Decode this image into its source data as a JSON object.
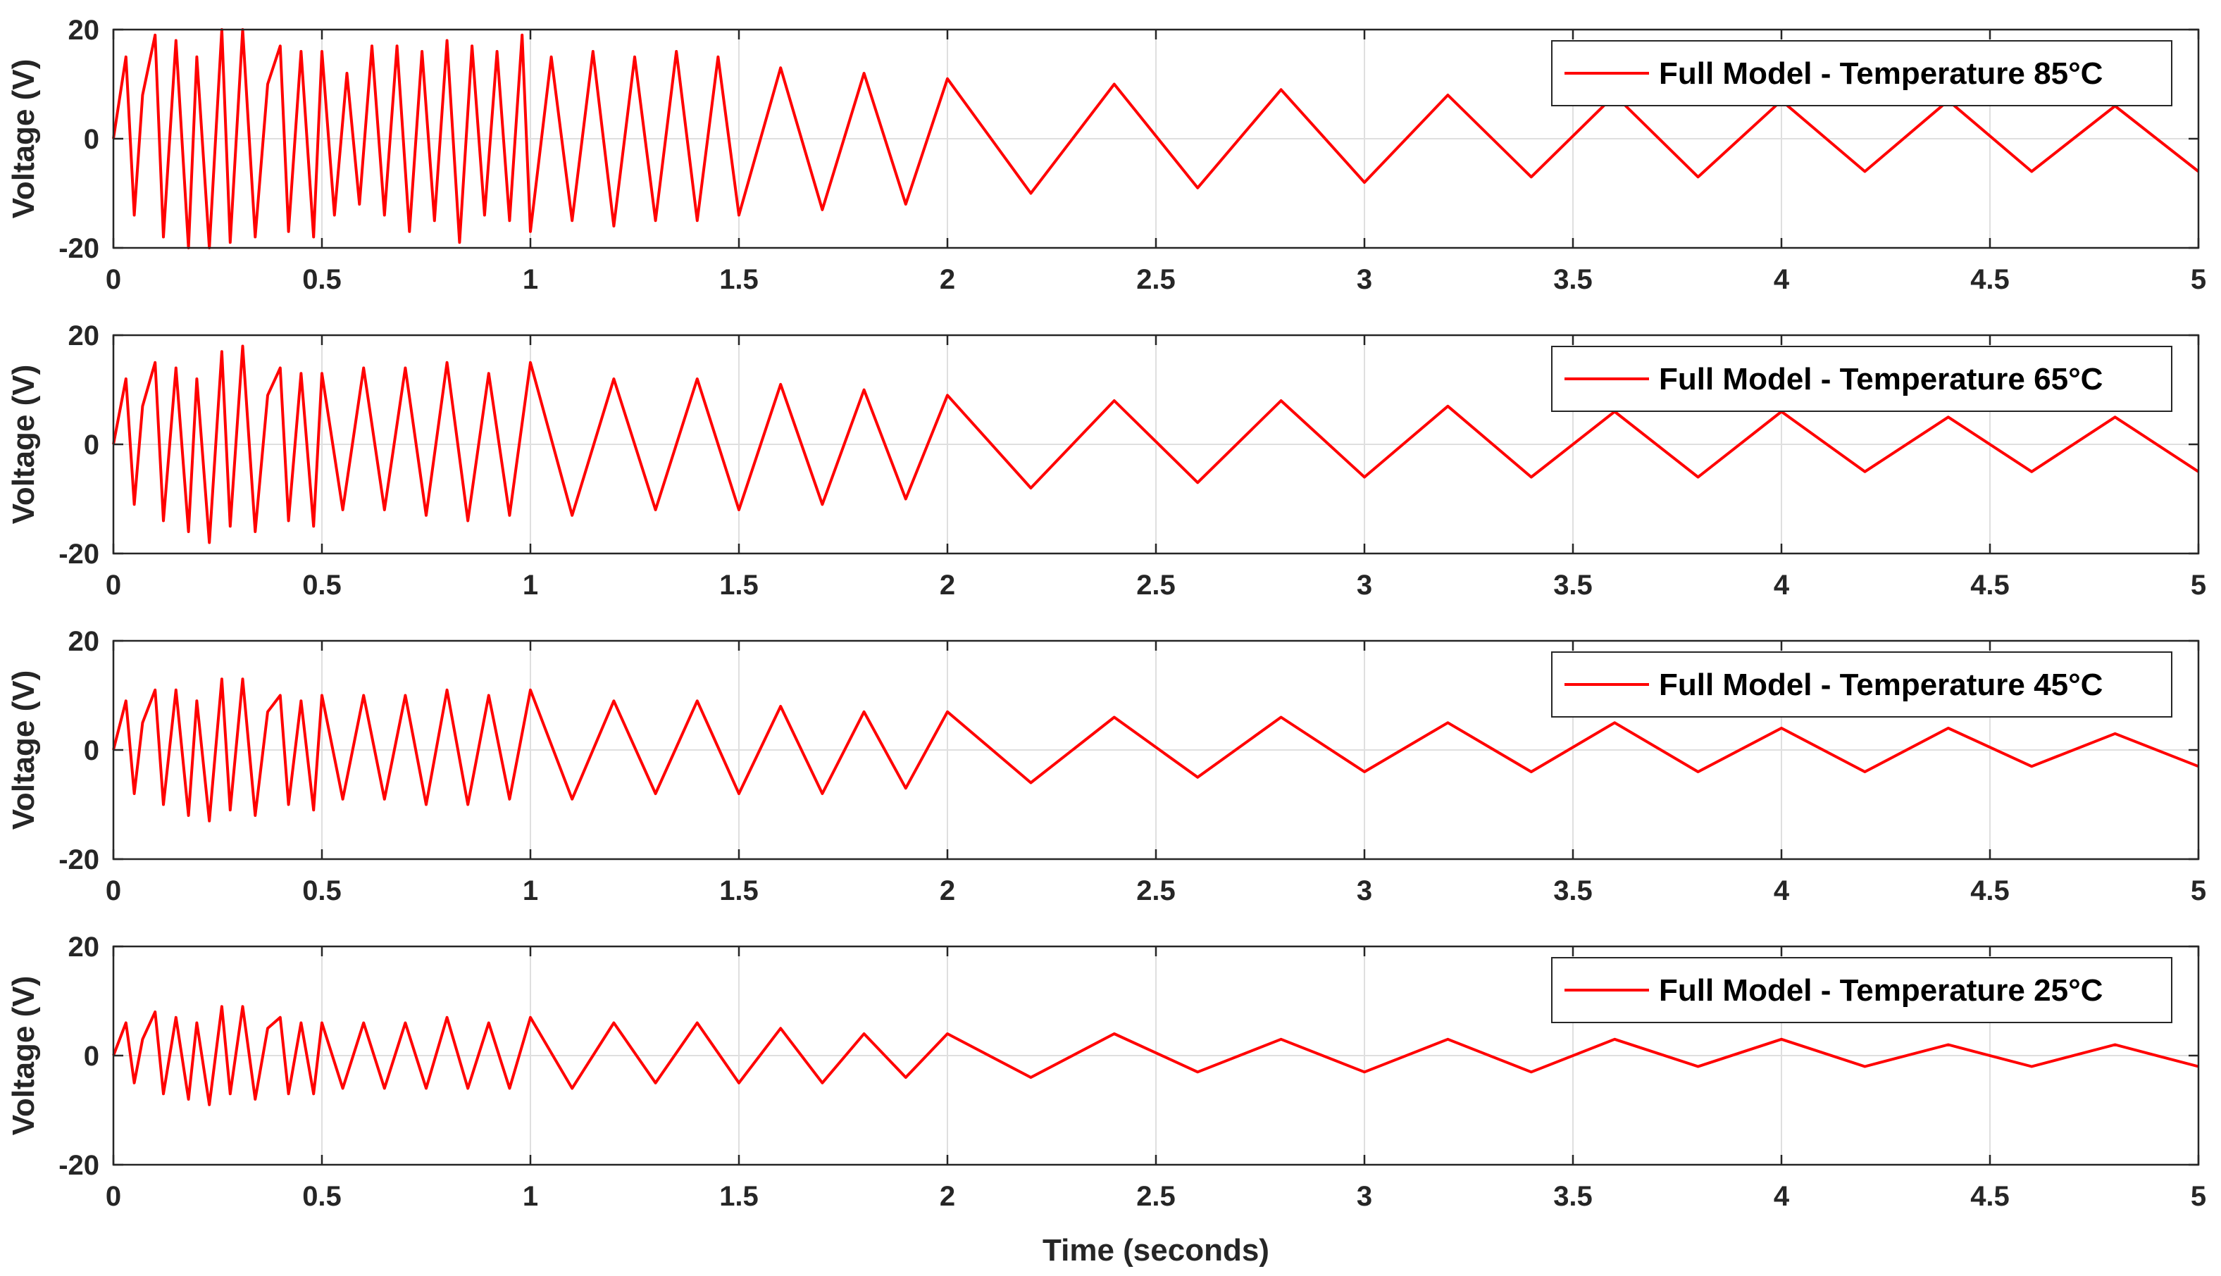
{
  "chart_data": [
    {
      "type": "line",
      "title": "",
      "xlabel": "",
      "ylabel": "Voltage (V)",
      "xlim": [
        0,
        5
      ],
      "ylim": [
        -20,
        20
      ],
      "xticks": [
        "0",
        "0.5",
        "1",
        "1.5",
        "2",
        "2.5",
        "3",
        "3.5",
        "4",
        "4.5",
        "5"
      ],
      "yticks": [
        "20",
        "0",
        "-20"
      ],
      "grid": true,
      "legend_position": "top-right",
      "series": [
        {
          "name": "Full Model - Temperature 85°C",
          "color": "#ff0000",
          "x": [
            0,
            0.03,
            0.05,
            0.07,
            0.1,
            0.12,
            0.15,
            0.18,
            0.2,
            0.23,
            0.26,
            0.28,
            0.31,
            0.34,
            0.37,
            0.4,
            0.42,
            0.45,
            0.48,
            0.5,
            0.53,
            0.56,
            0.59,
            0.62,
            0.65,
            0.68,
            0.71,
            0.74,
            0.77,
            0.8,
            0.83,
            0.86,
            0.89,
            0.92,
            0.95,
            0.98,
            1.0,
            1.05,
            1.1,
            1.15,
            1.2,
            1.25,
            1.3,
            1.35,
            1.4,
            1.45,
            1.5,
            1.6,
            1.7,
            1.8,
            1.9,
            2.0,
            2.2,
            2.4,
            2.6,
            2.8,
            3.0,
            3.2,
            3.4,
            3.6,
            3.8,
            4.0,
            4.2,
            4.4,
            4.6,
            4.8,
            5.0
          ],
          "y": [
            0,
            15,
            -14,
            8,
            19,
            -18,
            18,
            -20,
            15,
            -20,
            20,
            -19,
            20,
            -18,
            10,
            17,
            -17,
            16,
            -18,
            16,
            -14,
            12,
            -12,
            17,
            -14,
            17,
            -17,
            16,
            -15,
            18,
            -19,
            17,
            -14,
            16,
            -15,
            19,
            -17,
            15,
            -15,
            16,
            -16,
            15,
            -15,
            16,
            -15,
            15,
            -14,
            13,
            -13,
            12,
            -12,
            11,
            -10,
            10,
            -9,
            9,
            -8,
            8,
            -7,
            8,
            -7,
            7,
            -6,
            7,
            -6,
            6,
            -6
          ]
        }
      ]
    },
    {
      "type": "line",
      "title": "",
      "xlabel": "",
      "ylabel": "Voltage (V)",
      "xlim": [
        0,
        5
      ],
      "ylim": [
        -20,
        20
      ],
      "xticks": [
        "0",
        "0.5",
        "1",
        "1.5",
        "2",
        "2.5",
        "3",
        "3.5",
        "4",
        "4.5",
        "5"
      ],
      "yticks": [
        "20",
        "0",
        "-20"
      ],
      "grid": true,
      "legend_position": "top-right",
      "series": [
        {
          "name": "Full Model - Temperature 65°C",
          "color": "#ff0000",
          "x": [
            0,
            0.03,
            0.05,
            0.07,
            0.1,
            0.12,
            0.15,
            0.18,
            0.2,
            0.23,
            0.26,
            0.28,
            0.31,
            0.34,
            0.37,
            0.4,
            0.42,
            0.45,
            0.48,
            0.5,
            0.55,
            0.6,
            0.65,
            0.7,
            0.75,
            0.8,
            0.85,
            0.9,
            0.95,
            1.0,
            1.1,
            1.2,
            1.3,
            1.4,
            1.5,
            1.6,
            1.7,
            1.8,
            1.9,
            2.0,
            2.2,
            2.4,
            2.6,
            2.8,
            3.0,
            3.2,
            3.4,
            3.6,
            3.8,
            4.0,
            4.2,
            4.4,
            4.6,
            4.8,
            5.0
          ],
          "y": [
            0,
            12,
            -11,
            7,
            15,
            -14,
            14,
            -16,
            12,
            -18,
            17,
            -15,
            18,
            -16,
            9,
            14,
            -14,
            13,
            -15,
            13,
            -12,
            14,
            -12,
            14,
            -13,
            15,
            -14,
            13,
            -13,
            15,
            -13,
            12,
            -12,
            12,
            -12,
            11,
            -11,
            10,
            -10,
            9,
            -8,
            8,
            -7,
            8,
            -6,
            7,
            -6,
            6,
            -6,
            6,
            -5,
            5,
            -5,
            5,
            -5
          ]
        }
      ]
    },
    {
      "type": "line",
      "title": "",
      "xlabel": "",
      "ylabel": "Voltage (V)",
      "xlim": [
        0,
        5
      ],
      "ylim": [
        -20,
        20
      ],
      "xticks": [
        "0",
        "0.5",
        "1",
        "1.5",
        "2",
        "2.5",
        "3",
        "3.5",
        "4",
        "4.5",
        "5"
      ],
      "yticks": [
        "20",
        "0",
        "-20"
      ],
      "grid": true,
      "legend_position": "top-right",
      "series": [
        {
          "name": "Full Model - Temperature 45°C",
          "color": "#ff0000",
          "x": [
            0,
            0.03,
            0.05,
            0.07,
            0.1,
            0.12,
            0.15,
            0.18,
            0.2,
            0.23,
            0.26,
            0.28,
            0.31,
            0.34,
            0.37,
            0.4,
            0.42,
            0.45,
            0.48,
            0.5,
            0.55,
            0.6,
            0.65,
            0.7,
            0.75,
            0.8,
            0.85,
            0.9,
            0.95,
            1.0,
            1.1,
            1.2,
            1.3,
            1.4,
            1.5,
            1.6,
            1.7,
            1.8,
            1.9,
            2.0,
            2.2,
            2.4,
            2.6,
            2.8,
            3.0,
            3.2,
            3.4,
            3.6,
            3.8,
            4.0,
            4.2,
            4.4,
            4.6,
            4.8,
            5.0
          ],
          "y": [
            0,
            9,
            -8,
            5,
            11,
            -10,
            11,
            -12,
            9,
            -13,
            13,
            -11,
            13,
            -12,
            7,
            10,
            -10,
            9,
            -11,
            10,
            -9,
            10,
            -9,
            10,
            -10,
            11,
            -10,
            10,
            -9,
            11,
            -9,
            9,
            -8,
            9,
            -8,
            8,
            -8,
            7,
            -7,
            7,
            -6,
            6,
            -5,
            6,
            -4,
            5,
            -4,
            5,
            -4,
            4,
            -4,
            4,
            -3,
            3,
            -3
          ]
        }
      ]
    },
    {
      "type": "line",
      "title": "",
      "xlabel": "Time (seconds)",
      "ylabel": "Voltage (V)",
      "xlim": [
        0,
        5
      ],
      "ylim": [
        -20,
        20
      ],
      "xticks": [
        "0",
        "0.5",
        "1",
        "1.5",
        "2",
        "2.5",
        "3",
        "3.5",
        "4",
        "4.5",
        "5"
      ],
      "yticks": [
        "20",
        "0",
        "-20"
      ],
      "grid": true,
      "legend_position": "top-right",
      "series": [
        {
          "name": "Full Model - Temperature 25°C",
          "color": "#ff0000",
          "x": [
            0,
            0.03,
            0.05,
            0.07,
            0.1,
            0.12,
            0.15,
            0.18,
            0.2,
            0.23,
            0.26,
            0.28,
            0.31,
            0.34,
            0.37,
            0.4,
            0.42,
            0.45,
            0.48,
            0.5,
            0.55,
            0.6,
            0.65,
            0.7,
            0.75,
            0.8,
            0.85,
            0.9,
            0.95,
            1.0,
            1.1,
            1.2,
            1.3,
            1.4,
            1.5,
            1.6,
            1.7,
            1.8,
            1.9,
            2.0,
            2.2,
            2.4,
            2.6,
            2.8,
            3.0,
            3.2,
            3.4,
            3.6,
            3.8,
            4.0,
            4.2,
            4.4,
            4.6,
            4.8,
            5.0
          ],
          "y": [
            0,
            6,
            -5,
            3,
            8,
            -7,
            7,
            -8,
            6,
            -9,
            9,
            -7,
            9,
            -8,
            5,
            7,
            -7,
            6,
            -7,
            6,
            -6,
            6,
            -6,
            6,
            -6,
            7,
            -6,
            6,
            -6,
            7,
            -6,
            6,
            -5,
            6,
            -5,
            5,
            -5,
            4,
            -4,
            4,
            -4,
            4,
            -3,
            3,
            -3,
            3,
            -3,
            3,
            -2,
            3,
            -2,
            2,
            -2,
            2,
            -2
          ]
        }
      ]
    }
  ]
}
